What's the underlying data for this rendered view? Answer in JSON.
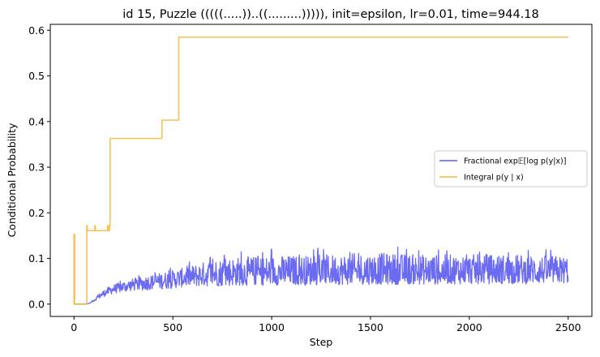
{
  "chart_data": {
    "type": "line",
    "title": "id 15, Puzzle (((((.....))..((.........))))), init=epsilon, lr=0.01, time=944.18",
    "xlabel": "Step",
    "ylabel": "Conditional Probability",
    "xlim": [
      -120,
      2620
    ],
    "ylim": [
      -0.027,
      0.613
    ],
    "xticks": [
      0,
      500,
      1000,
      1500,
      2000,
      2500
    ],
    "xtick_labels": [
      "0",
      "500",
      "1000",
      "1500",
      "2000",
      "2500"
    ],
    "yticks": [
      0.0,
      0.1,
      0.2,
      0.3,
      0.4,
      0.5,
      0.6
    ],
    "ytick_labels": [
      "0.0",
      "0.1",
      "0.2",
      "0.3",
      "0.4",
      "0.5",
      "0.6"
    ],
    "grid": false,
    "legend_position": "center-right",
    "series": [
      {
        "name": "Fractional exp𝔼[log p(y|x)]",
        "color": "#5b5bf0",
        "style": "noisy",
        "x": [
          0,
          30,
          60,
          80,
          100,
          130,
          160,
          200,
          250,
          300,
          350,
          400,
          450,
          500,
          550,
          600,
          700,
          800,
          1000,
          1200,
          1500,
          1800,
          2000,
          2200,
          2500
        ],
        "y": [
          0.0,
          0.0,
          0.0,
          0.002,
          0.008,
          0.018,
          0.026,
          0.033,
          0.038,
          0.042,
          0.045,
          0.048,
          0.051,
          0.054,
          0.057,
          0.06,
          0.063,
          0.065,
          0.066,
          0.067,
          0.068,
          0.068,
          0.069,
          0.069,
          0.07
        ],
        "noise_min": [
          0,
          0,
          0,
          0,
          0.002,
          0.006,
          0.008,
          0.01,
          0.012,
          0.013,
          0.015,
          0.016,
          0.018,
          0.02,
          0.02,
          0.022,
          0.024,
          0.025,
          0.025,
          0.025,
          0.025,
          0.025,
          0.025,
          0.025,
          0.025
        ],
        "noise_max": [
          0,
          0,
          0,
          0,
          0.003,
          0.006,
          0.008,
          0.01,
          0.012,
          0.014,
          0.016,
          0.017,
          0.018,
          0.02,
          0.022,
          0.025,
          0.035,
          0.038,
          0.04,
          0.04,
          0.045,
          0.04,
          0.04,
          0.04,
          0.035
        ]
      },
      {
        "name": "Integral p(y | x)",
        "color": "#f5b731",
        "style": "steps",
        "points": [
          [
            0,
            0.0
          ],
          [
            0,
            0.153
          ],
          [
            3,
            0.153
          ],
          [
            3,
            0.0
          ],
          [
            65,
            0.0
          ],
          [
            65,
            0.172
          ],
          [
            68,
            0.172
          ],
          [
            68,
            0.161
          ],
          [
            105,
            0.161
          ],
          [
            105,
            0.172
          ],
          [
            108,
            0.172
          ],
          [
            108,
            0.161
          ],
          [
            170,
            0.161
          ],
          [
            170,
            0.172
          ],
          [
            173,
            0.172
          ],
          [
            173,
            0.161
          ],
          [
            180,
            0.161
          ],
          [
            180,
            0.172
          ],
          [
            183,
            0.172
          ],
          [
            183,
            0.363
          ],
          [
            445,
            0.363
          ],
          [
            445,
            0.403
          ],
          [
            530,
            0.403
          ],
          [
            530,
            0.585
          ],
          [
            2500,
            0.585
          ]
        ]
      }
    ]
  }
}
